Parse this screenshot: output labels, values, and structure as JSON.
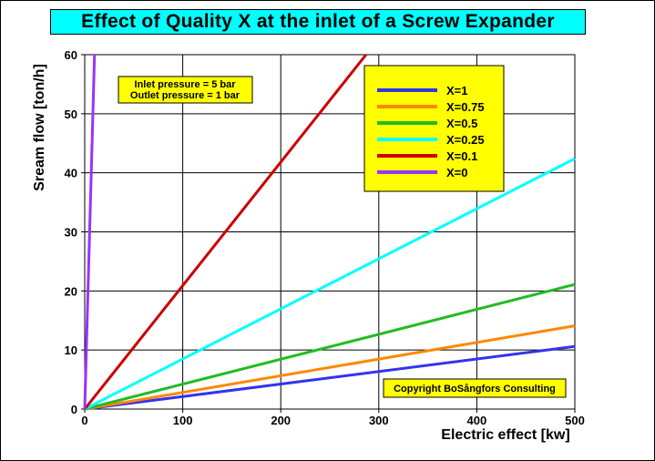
{
  "chart_data": {
    "type": "line",
    "title": "Effect of Quality X at the inlet of a Screw Expander",
    "xlabel": "Electric effect [kw]",
    "ylabel": "Sream flow [ton/h]",
    "xlim": [
      0,
      500
    ],
    "ylim": [
      0,
      60
    ],
    "x_ticks": [
      "0",
      "100",
      "200",
      "300",
      "400",
      "500"
    ],
    "y_ticks": [
      "0",
      "10",
      "20",
      "30",
      "40",
      "50",
      "60"
    ],
    "grid": true,
    "legend_position": "top-right",
    "annotations": {
      "conditions": [
        "Inlet pressure = 5 bar",
        "Outlet pressure = 1 bar"
      ],
      "copyright": "Copyright BoSångfors Consulting"
    },
    "colors": {
      "title_background": "#00ffff",
      "annotation_background": "#ffff00"
    },
    "series": [
      {
        "name": "X=1",
        "color": "#3333ee",
        "x": [
          0,
          500
        ],
        "y": [
          0,
          10.6
        ]
      },
      {
        "name": "X=0.75",
        "color": "#ff8800",
        "x": [
          0,
          500
        ],
        "y": [
          0,
          14.1
        ]
      },
      {
        "name": "X=0.5",
        "color": "#22bb22",
        "x": [
          0,
          500
        ],
        "y": [
          0,
          21.1
        ]
      },
      {
        "name": "X=0.25",
        "color": "#00ffff",
        "x": [
          0,
          500
        ],
        "y": [
          0,
          42.4
        ]
      },
      {
        "name": "X=0.1",
        "color": "#cc0000",
        "x": [
          0,
          287
        ],
        "y": [
          0,
          60
        ]
      },
      {
        "name": "X=0",
        "color": "#9933ff",
        "x": [
          0,
          10
        ],
        "y": [
          0,
          60
        ]
      }
    ]
  }
}
